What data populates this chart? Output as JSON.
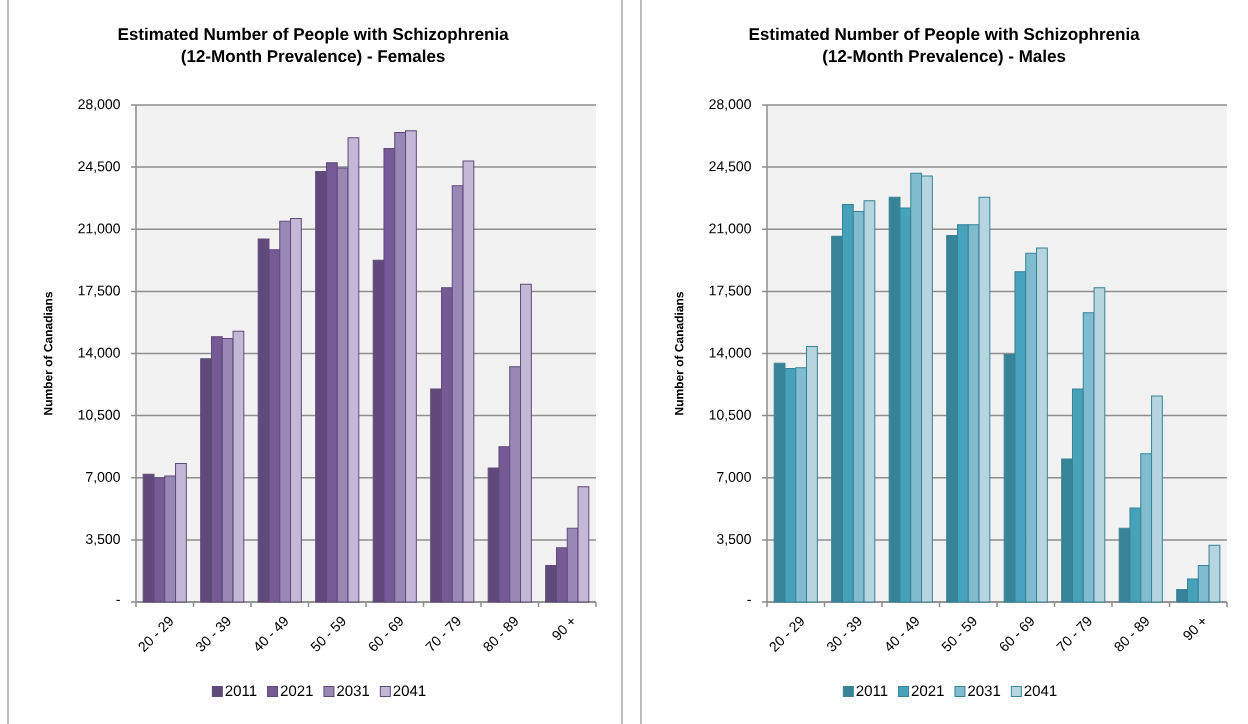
{
  "chart_data": [
    {
      "type": "bar",
      "title": "Estimated Number of People with Schizophrenia (12-Month Prevalence) - Females",
      "ylabel": "Number of Canadians",
      "categories": [
        "20 - 29",
        "30 - 39",
        "40 - 49",
        "50 - 59",
        "60 - 69",
        "70 - 79",
        "80 - 89",
        "90 +"
      ],
      "series": [
        {
          "name": "2011",
          "color": "#604a7b",
          "values": [
            7200,
            13700,
            20450,
            24250,
            19250,
            12000,
            7550,
            2050
          ]
        },
        {
          "name": "2021",
          "color": "#765a96",
          "values": [
            7000,
            14950,
            19850,
            24750,
            25550,
            17700,
            8750,
            3050
          ]
        },
        {
          "name": "2031",
          "color": "#9988b5",
          "values": [
            7100,
            14850,
            21450,
            24450,
            26450,
            23450,
            13250,
            4150
          ]
        },
        {
          "name": "2041",
          "color": "#c3b9d6",
          "values": [
            7800,
            15250,
            21600,
            26150,
            26550,
            24850,
            17900,
            6500
          ]
        }
      ],
      "ylim": [
        0,
        28000
      ],
      "yticks": [
        {
          "value": 0,
          "label": "-"
        },
        {
          "value": 3500,
          "label": "3,500"
        },
        {
          "value": 7000,
          "label": "7,000"
        },
        {
          "value": 10500,
          "label": "10,500"
        },
        {
          "value": 14000,
          "label": "14,000"
        },
        {
          "value": 17500,
          "label": "17,500"
        },
        {
          "value": 21000,
          "label": "21,000"
        },
        {
          "value": 24500,
          "label": "24,500"
        },
        {
          "value": 28000,
          "label": "28,000"
        }
      ],
      "grid": "y",
      "legend": "bottom"
    },
    {
      "type": "bar",
      "title": "Estimated Number of People with Schizophrenia (12-Month Prevalence) - Males",
      "ylabel": "Number of Canadians",
      "categories": [
        "20 - 29",
        "30 - 39",
        "40 - 49",
        "50 - 59",
        "60 - 69",
        "70 - 79",
        "80 - 89",
        "90 +"
      ],
      "series": [
        {
          "name": "2011",
          "color": "#378398",
          "values": [
            13450,
            20600,
            22800,
            20650,
            13950,
            8050,
            4150,
            700
          ]
        },
        {
          "name": "2021",
          "color": "#45a2ba",
          "values": [
            13150,
            22400,
            22200,
            21250,
            18600,
            12000,
            5300,
            1300
          ]
        },
        {
          "name": "2031",
          "color": "#7fbcd0",
          "values": [
            13200,
            22000,
            24150,
            21250,
            19650,
            16300,
            8350,
            2050
          ]
        },
        {
          "name": "2041",
          "color": "#b7d5df",
          "values": [
            14400,
            22600,
            24000,
            22800,
            19950,
            17700,
            11600,
            3200
          ]
        }
      ],
      "ylim": [
        0,
        28000
      ],
      "yticks": [
        {
          "value": 0,
          "label": "-"
        },
        {
          "value": 3500,
          "label": "3,500"
        },
        {
          "value": 7000,
          "label": "7,000"
        },
        {
          "value": 10500,
          "label": "10,500"
        },
        {
          "value": 14000,
          "label": "14,000"
        },
        {
          "value": 17500,
          "label": "17,500"
        },
        {
          "value": 21000,
          "label": "21,000"
        },
        {
          "value": 24500,
          "label": "24,500"
        },
        {
          "value": 28000,
          "label": "28,000"
        }
      ],
      "grid": "y",
      "legend": "bottom"
    }
  ]
}
